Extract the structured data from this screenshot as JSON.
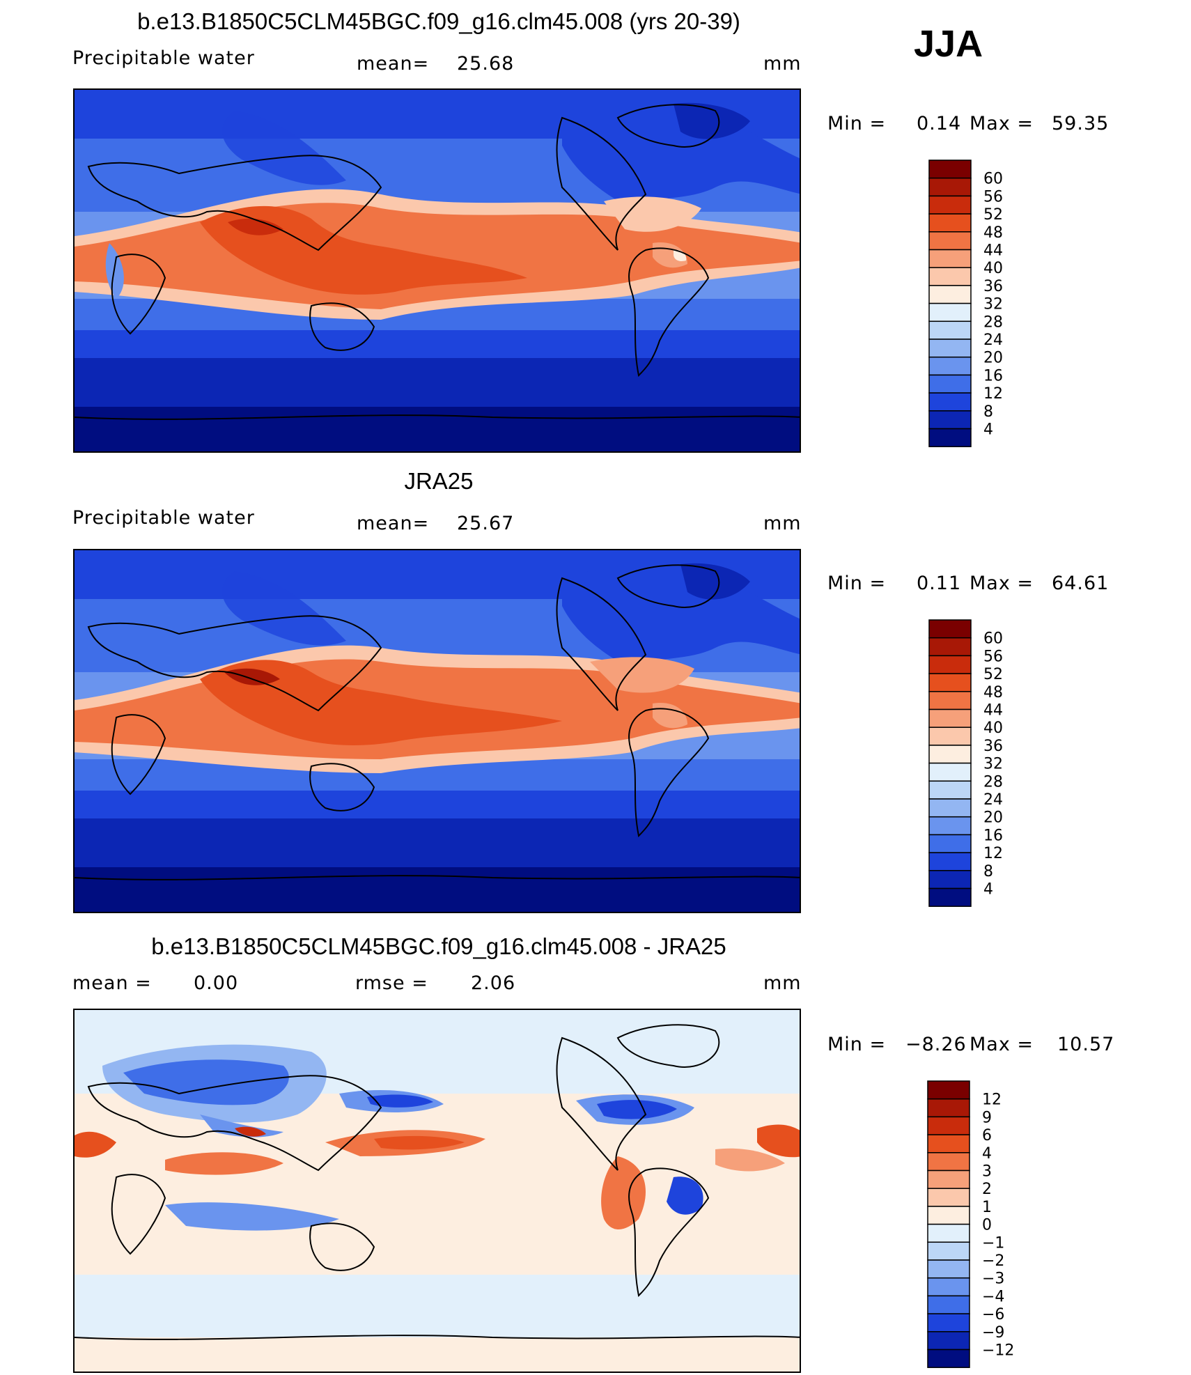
{
  "season": "JJA",
  "panels": [
    {
      "title": "b.e13.B1850C5CLM45BGC.f09_g16.clm45.008 (yrs 20-39)",
      "variable": "Precipitable water",
      "stat_label": "mean=",
      "stat_value": "25.68",
      "units": "mm",
      "min_label": "Min =",
      "min_value": "0.14",
      "max_label": "Max =",
      "max_value": "59.35",
      "kind": "abs"
    },
    {
      "title": "JRA25",
      "variable": "Precipitable water",
      "stat_label": "mean=",
      "stat_value": "25.67",
      "units": "mm",
      "min_label": "Min =",
      "min_value": "0.11",
      "max_label": "Max =",
      "max_value": "64.61",
      "kind": "abs"
    },
    {
      "title": "b.e13.B1850C5CLM45BGC.f09_g16.clm45.008 - JRA25",
      "mean_label": "mean =",
      "mean_value": "0.00",
      "stat_label": "rmse =",
      "stat_value": "2.06",
      "units": "mm",
      "min_label": "Min =",
      "min_value": "−8.26",
      "max_label": "Max =",
      "max_value": "10.57",
      "kind": "diff"
    }
  ],
  "colorbars": {
    "abs": {
      "labels": [
        "60",
        "56",
        "52",
        "48",
        "44",
        "40",
        "36",
        "32",
        "28",
        "24",
        "20",
        "16",
        "12",
        "8",
        "4"
      ],
      "colors": [
        "#7a0000",
        "#a81806",
        "#c92c0c",
        "#e6501e",
        "#f07444",
        "#f6a07a",
        "#fbc8ac",
        "#fdeee0",
        "#e2f0fb",
        "#bcd6f6",
        "#93b6f2",
        "#6a94ee",
        "#3f6ee8",
        "#1e44dc",
        "#0c26b4",
        "#000d80"
      ]
    },
    "diff": {
      "labels": [
        "12",
        "9",
        "6",
        "4",
        "3",
        "2",
        "1",
        "0",
        "−1",
        "−2",
        "−3",
        "−4",
        "−6",
        "−9",
        "−12"
      ],
      "colors": [
        "#7a0000",
        "#a81806",
        "#c92c0c",
        "#e6501e",
        "#f07444",
        "#f6a07a",
        "#fbc8ac",
        "#fdeee0",
        "#e2f0fb",
        "#bcd6f6",
        "#93b6f2",
        "#6a94ee",
        "#3f6ee8",
        "#1e44dc",
        "#0c26b4",
        "#000d80"
      ]
    }
  }
}
